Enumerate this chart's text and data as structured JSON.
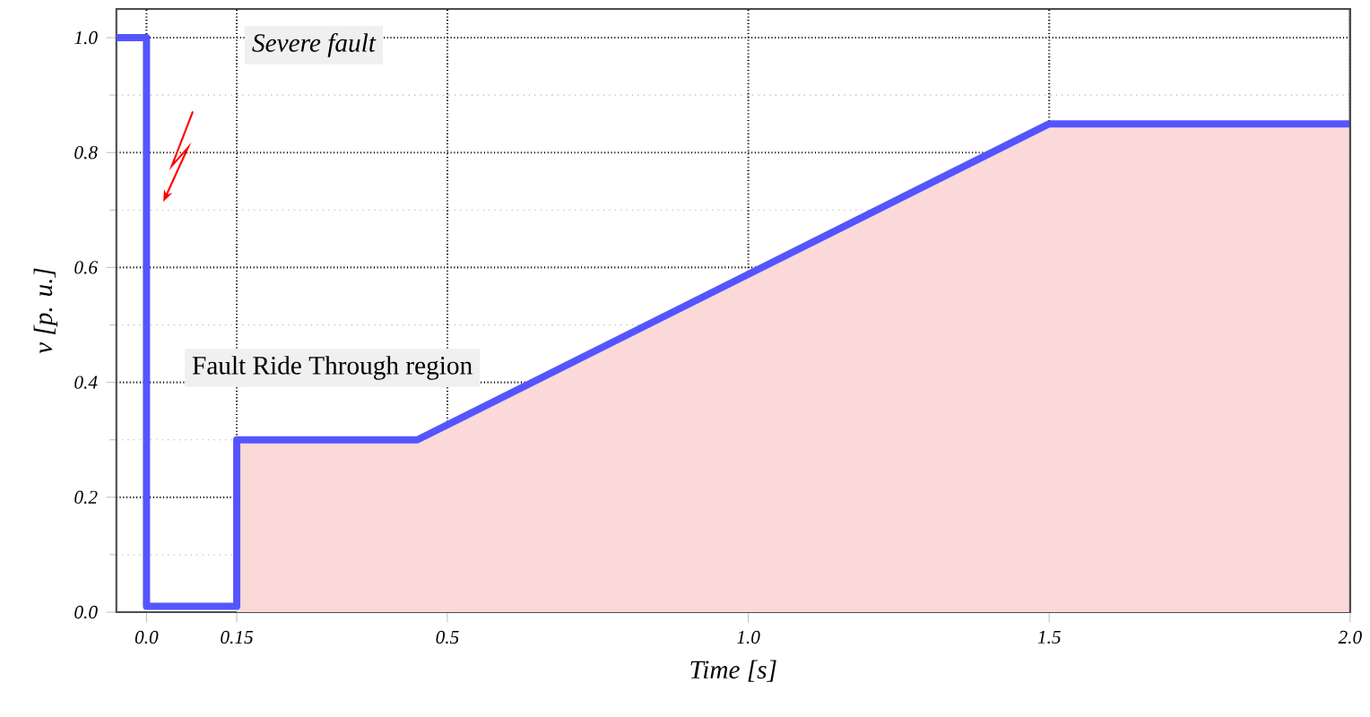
{
  "chart_data": {
    "type": "line",
    "xlabel": "Time [s]",
    "ylabel": "v [p. u.]",
    "xlim": [
      -0.05,
      2.0
    ],
    "ylim": [
      0.0,
      1.05
    ],
    "xticks": [
      {
        "value": 0.0,
        "label": "0.0"
      },
      0.15,
      0.5,
      {
        "value": 1.0,
        "label": "1.0"
      },
      1.5,
      {
        "value": 2.0,
        "label": "2.0"
      }
    ],
    "yticks": [
      {
        "value": 0.0,
        "label": "0.0"
      },
      0.2,
      0.4,
      0.6,
      0.8,
      {
        "value": 1.0,
        "label": "1.0"
      }
    ],
    "grid": true,
    "marker": "none",
    "line_style": "solid",
    "series": [
      {
        "type": "area",
        "color": "#fbd9d9",
        "x": [
          0.15,
          0.45,
          1.5,
          2.0
        ],
        "values": [
          0.3,
          0.3,
          0.85,
          0.85
        ]
      },
      {
        "color": "#5555ff",
        "x": [
          -0.05,
          0.0,
          0.0,
          0.15,
          0.15,
          0.45,
          1.5,
          2.0
        ],
        "values": [
          1.0,
          1.0,
          0.01,
          0.01,
          0.3,
          0.3,
          0.85,
          0.85
        ]
      }
    ],
    "annotations": [
      "Severe fault",
      "Fault Ride Through region"
    ]
  }
}
